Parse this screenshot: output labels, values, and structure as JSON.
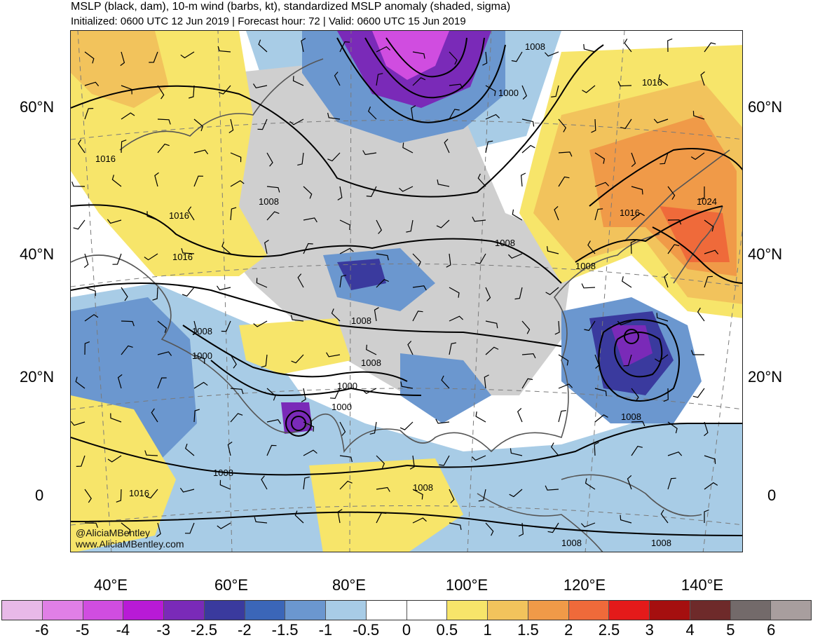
{
  "header": {
    "title": "MSLP (black, dam), 10-m wind (barbs, kt), standardized MSLP anomaly (shaded, sigma)",
    "subtitle": "Initialized: 0600 UTC 12 Jun 2019 | Forecast hour: 72 | Valid: 0600 UTC 15 Jun 2019"
  },
  "lat_labels": [
    "60°N",
    "40°N",
    "20°N",
    "0"
  ],
  "lon_labels": [
    "40°E",
    "60°E",
    "80°E",
    "100°E",
    "120°E",
    "140°E"
  ],
  "isobar_labels": [
    "1008",
    "1016",
    "1000",
    "1016",
    "1016",
    "1016",
    "1008",
    "1008",
    "1024",
    "1008",
    "1008",
    "1016",
    "1008",
    "1000",
    "1008",
    "1000",
    "1000",
    "1008",
    "1008",
    "1016",
    "1008",
    "1008",
    "1008"
  ],
  "credits": {
    "handle": "@AliciaMBentley",
    "site": "www.AliciaMBentley.com"
  },
  "colorbar": {
    "colors": [
      "#e8b9e8",
      "#e07fe6",
      "#d04de0",
      "#b81ad6",
      "#7a2ab8",
      "#3a3a9e",
      "#3b66b8",
      "#6b97cf",
      "#a8cce6",
      "#ffffff",
      "#ffffff",
      "#f7e56a",
      "#f2c35c",
      "#f09a48",
      "#ef6a3a",
      "#e41a1a",
      "#a50f0f",
      "#6e2a2a",
      "#736a6a",
      "#a89e9e"
    ],
    "labels": [
      "-6",
      "-5",
      "-4",
      "-3",
      "-2.5",
      "-2",
      "-1.5",
      "-1",
      "-0.5",
      "0",
      "0.5",
      "1",
      "1.5",
      "2",
      "2.5",
      "3",
      "4",
      "5",
      "6"
    ]
  }
}
